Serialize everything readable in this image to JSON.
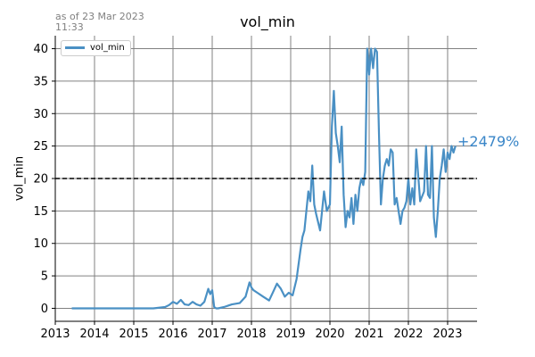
{
  "header": {
    "as_of": "as of 23 Mar 2023\n11:33"
  },
  "chart_data": {
    "type": "line",
    "title": "vol_min",
    "xlabel": "",
    "ylabel": "vol_min",
    "xlim": [
      2013.0,
      2023.75
    ],
    "ylim": [
      -2,
      42
    ],
    "x_ticks": [
      2013,
      2014,
      2015,
      2016,
      2017,
      2018,
      2019,
      2020,
      2021,
      2022,
      2023
    ],
    "y_ticks": [
      0,
      5,
      10,
      15,
      20,
      25,
      30,
      35,
      40
    ],
    "grid": true,
    "legend_placement": "top-left",
    "reference_line": {
      "y": 20,
      "style": "dashed",
      "color": "#000000"
    },
    "annotation": "+2479%",
    "colors": {
      "series": "#4a90c4",
      "annotation": "#3a86c8",
      "grid": "#808080"
    },
    "series": [
      {
        "name": "vol_min",
        "x": [
          2013.42,
          2014.0,
          2014.5,
          2015.0,
          2015.5,
          2015.8,
          2015.9,
          2016.0,
          2016.1,
          2016.2,
          2016.3,
          2016.4,
          2016.5,
          2016.6,
          2016.7,
          2016.8,
          2016.9,
          2016.95,
          2017.0,
          2017.05,
          2017.1,
          2017.15,
          2017.3,
          2017.5,
          2017.7,
          2017.85,
          2017.95,
          2018.0,
          2018.05,
          2018.15,
          2018.3,
          2018.45,
          2018.55,
          2018.65,
          2018.75,
          2018.85,
          2018.95,
          2019.05,
          2019.15,
          2019.25,
          2019.3,
          2019.35,
          2019.45,
          2019.5,
          2019.55,
          2019.6,
          2019.65,
          2019.75,
          2019.85,
          2019.92,
          2020.0,
          2020.05,
          2020.1,
          2020.15,
          2020.2,
          2020.25,
          2020.3,
          2020.35,
          2020.4,
          2020.45,
          2020.5,
          2020.55,
          2020.6,
          2020.65,
          2020.7,
          2020.75,
          2020.8,
          2020.85,
          2020.9,
          2020.95,
          2021.0,
          2021.05,
          2021.1,
          2021.15,
          2021.2,
          2021.25,
          2021.3,
          2021.35,
          2021.4,
          2021.45,
          2021.5,
          2021.55,
          2021.6,
          2021.65,
          2021.7,
          2021.8,
          2021.85,
          2021.9,
          2021.95,
          2022.0,
          2022.05,
          2022.1,
          2022.15,
          2022.2,
          2022.3,
          2022.4,
          2022.45,
          2022.5,
          2022.55,
          2022.6,
          2022.65,
          2022.7,
          2022.75,
          2022.8,
          2022.85,
          2022.9,
          2022.95,
          2023.0,
          2023.05,
          2023.1,
          2023.15,
          2023.2
        ],
        "values": [
          0,
          0,
          0,
          0,
          0,
          0.2,
          0.5,
          1.0,
          0.7,
          1.3,
          0.6,
          0.5,
          1.0,
          0.6,
          0.4,
          1.0,
          3.0,
          2.2,
          2.8,
          0.2,
          0,
          0,
          0.2,
          0.6,
          0.8,
          1.8,
          4.0,
          3.2,
          2.8,
          2.4,
          1.8,
          1.2,
          2.5,
          3.8,
          3.0,
          1.8,
          2.4,
          2.0,
          4.5,
          9.0,
          11.0,
          12.0,
          18.0,
          16.5,
          22.0,
          16.0,
          14.5,
          12.0,
          18.0,
          15.0,
          16.0,
          28.0,
          33.5,
          27.0,
          25.0,
          22.5,
          28.0,
          17.5,
          12.5,
          15.0,
          14.0,
          17.0,
          13.0,
          17.5,
          15.0,
          18.5,
          20.0,
          19.0,
          21.0,
          40.0,
          36.0,
          40.0,
          37.0,
          40.0,
          39.5,
          27.0,
          16.0,
          20.0,
          22.0,
          23.0,
          22.0,
          24.5,
          24.0,
          16.0,
          17.0,
          13.0,
          15.0,
          15.5,
          16.5,
          20.0,
          16.0,
          18.5,
          16.0,
          24.5,
          16.5,
          18.0,
          25.0,
          17.5,
          17.0,
          25.0,
          14.0,
          11.0,
          15.0,
          20.0,
          22.0,
          24.5,
          21.0,
          24.0,
          23.0,
          25.0,
          24.0,
          25.0
        ]
      }
    ]
  }
}
